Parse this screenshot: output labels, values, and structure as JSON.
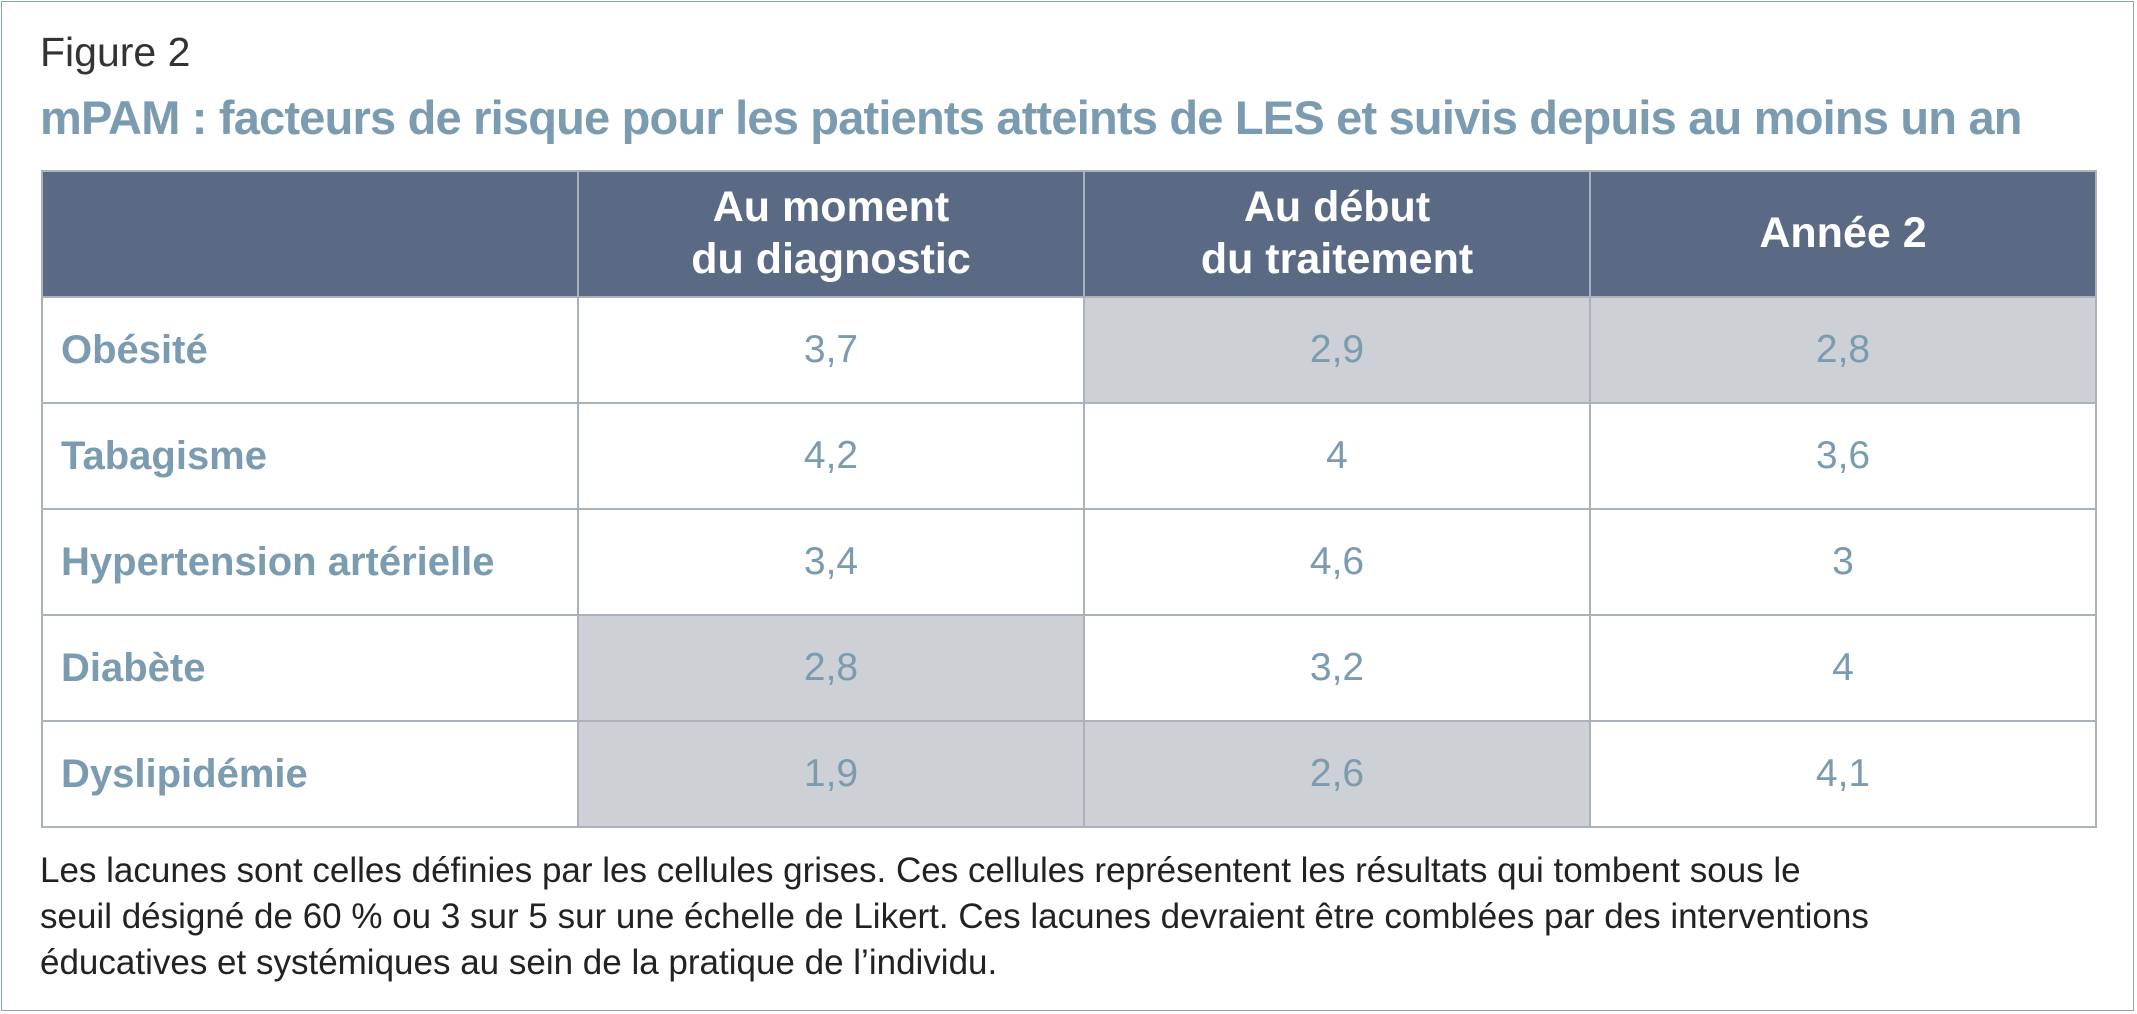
{
  "figure_label": "Figure 2",
  "title": "mPAM : facteurs de risque pour les patients atteints de LES et suivis depuis au moins un an",
  "chart_data": {
    "type": "table",
    "columns": [
      {
        "lines": [
          ""
        ]
      },
      {
        "lines": [
          "Au moment",
          "du diagnostic"
        ]
      },
      {
        "lines": [
          "Au début",
          "du traitement"
        ]
      },
      {
        "lines": [
          "Année 2"
        ]
      }
    ],
    "rows": [
      {
        "label": "Obésité",
        "values": [
          "3,7",
          "2,9",
          "2,8"
        ],
        "gap": [
          false,
          true,
          true
        ]
      },
      {
        "label": "Tabagisme",
        "values": [
          "4,2",
          "4",
          "3,6"
        ],
        "gap": [
          false,
          false,
          false
        ]
      },
      {
        "label": "Hypertension artérielle",
        "values": [
          "3,4",
          "4,6",
          "3"
        ],
        "gap": [
          false,
          false,
          false
        ]
      },
      {
        "label": "Diabète",
        "values": [
          "2,8",
          "3,2",
          "4"
        ],
        "gap": [
          true,
          false,
          false
        ]
      },
      {
        "label": "Dyslipidémie",
        "values": [
          "1,9",
          "2,6",
          "4,1"
        ],
        "gap": [
          true,
          true,
          false
        ]
      }
    ]
  },
  "footnote_lines": [
    "Les lacunes sont celles définies par les cellules grises. Ces cellules représentent les résultats qui tombent sous le",
    "seuil désigné de 60 % ou 3 sur 5 sur une échelle de Likert. Ces lacunes devraient être comblées par des interventions",
    "éducatives et systémiques au sein de la pratique de l’individu."
  ],
  "colors": {
    "header_bg": "#5a6a85",
    "accent_text": "#7a9bb0",
    "gap_cell": "#cdd0d4",
    "grid": "#aab2bc"
  }
}
